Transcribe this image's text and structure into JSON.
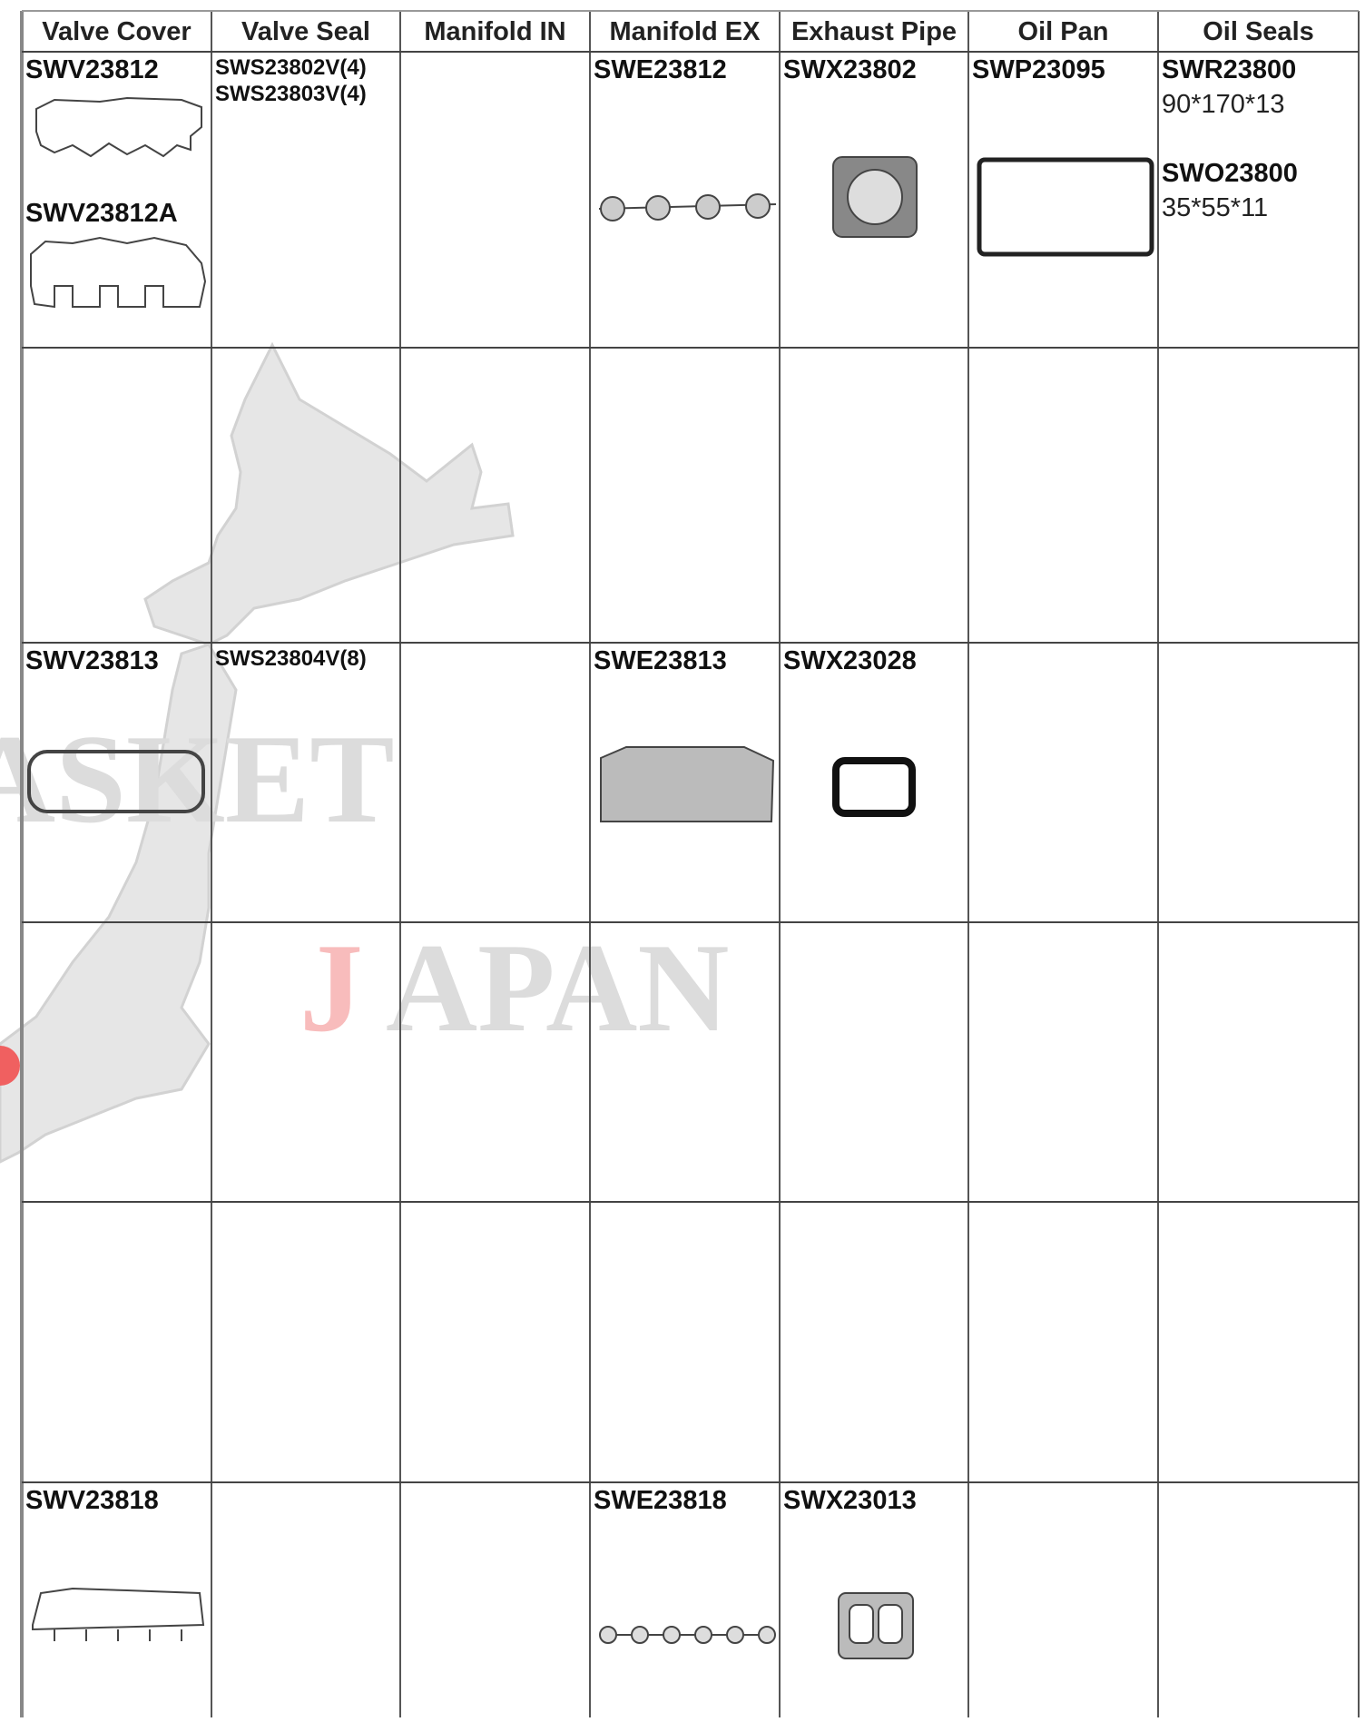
{
  "watermark": {
    "upper": "ASKET",
    "lower_first": "J",
    "lower_rest": "APAN"
  },
  "table": {
    "headers": [
      "Valve Cover",
      "Valve Seal",
      "Manifold IN",
      "Manifold EX",
      "Exhaust Pipe",
      "Oil Pan",
      "Oil Seals"
    ],
    "rows": [
      [
        [
          {
            "code": "SWV23812"
          },
          {
            "code": "SWV23812A"
          }
        ],
        [
          {
            "code": "SWS23802V(4)"
          },
          {
            "code": "SWS23803V(4)"
          }
        ],
        [],
        [
          {
            "code": "SWE23812"
          }
        ],
        [
          {
            "code": "SWX23802"
          }
        ],
        [
          {
            "code": "SWP23095"
          }
        ],
        [
          {
            "code": "SWR23800",
            "spec": "90*170*13"
          },
          {
            "code": "SWO23800",
            "spec": "35*55*11"
          }
        ]
      ],
      [
        [],
        [],
        [],
        [],
        [],
        [],
        []
      ],
      [
        [
          {
            "code": "SWV23813"
          }
        ],
        [
          {
            "code": "SWS23804V(8)"
          }
        ],
        [],
        [
          {
            "code": "SWE23813"
          }
        ],
        [
          {
            "code": "SWX23028"
          }
        ],
        [],
        []
      ],
      [
        [],
        [],
        [],
        [],
        [],
        [],
        []
      ],
      [
        [],
        [],
        [],
        [],
        [],
        [],
        []
      ],
      [
        [
          {
            "code": "SWV23818"
          }
        ],
        [],
        [],
        [
          {
            "code": "SWE23818"
          }
        ],
        [
          {
            "code": "SWX23013"
          }
        ],
        [],
        []
      ]
    ]
  }
}
